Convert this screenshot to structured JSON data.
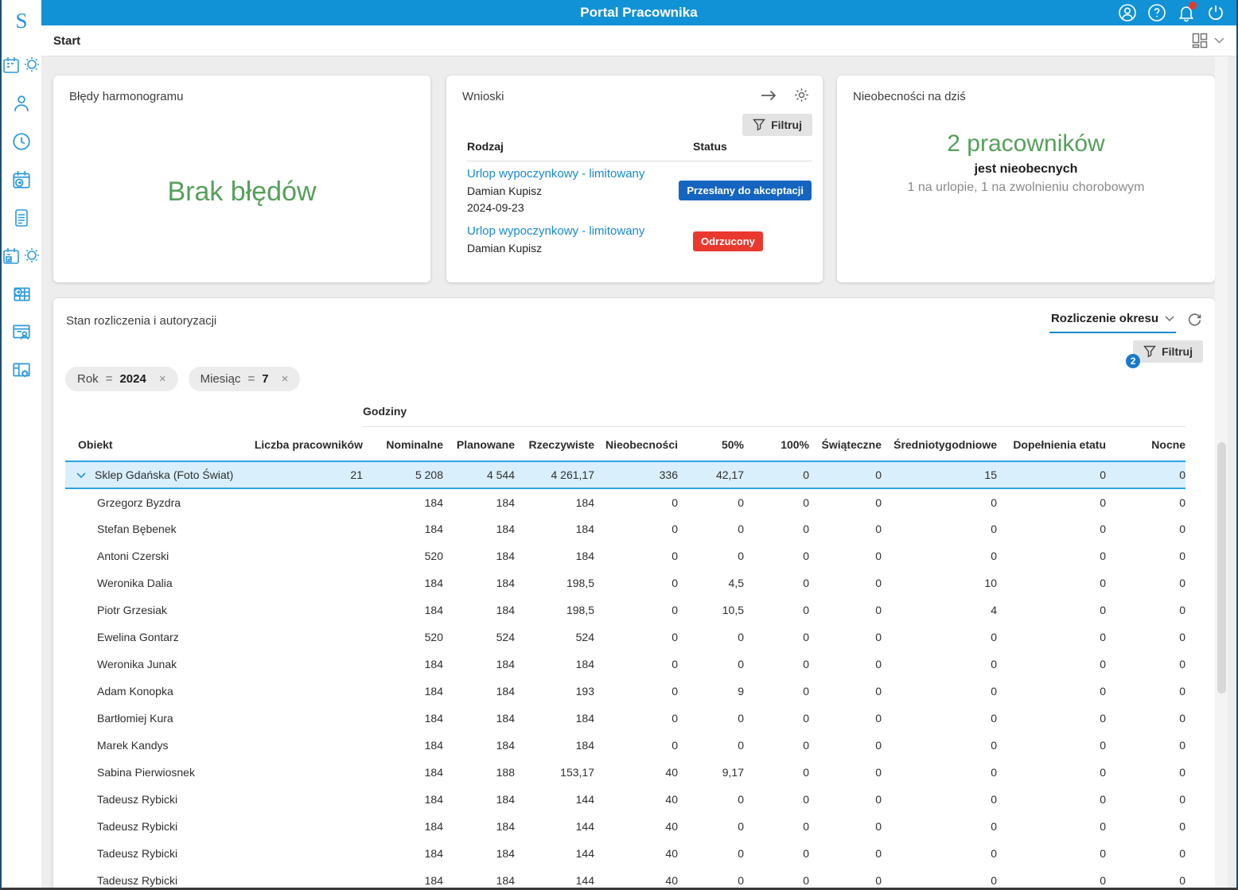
{
  "app": {
    "title": "Portal Pracownika"
  },
  "topbar": {
    "icons": [
      "user-circle-icon",
      "help-icon",
      "bell-icon",
      "power-icon"
    ],
    "bell_has_notification": true
  },
  "breadcrumb": {
    "label": "Start",
    "icons": [
      "dashboard-layout-icon",
      "chevron-down-icon"
    ]
  },
  "sidebar": {
    "logo": "S",
    "items": [
      "calendar-sun-icon",
      "person-icon",
      "clock-icon",
      "calendar-arrow-icon",
      "document-icon",
      "calendar-check-sun-icon",
      "table-arrow-icon",
      "window-person-icon",
      "window-gear-icon"
    ]
  },
  "cards": {
    "schedule_errors": {
      "title": "Błędy harmonogramu",
      "message": "Brak błędów"
    },
    "requests": {
      "title": "Wnioski",
      "toolbar_icons": [
        "arrow-right-icon",
        "gear-icon"
      ],
      "filter_label": "Filtruj",
      "columns": {
        "type": "Rodzaj",
        "status": "Status"
      },
      "items": [
        {
          "type": "Urlop wypoczynkowy - limitowany",
          "person": "Damian Kupisz",
          "date": "2024-09-23",
          "status": "Przesłany do akceptacji",
          "status_color": "#1565c0"
        },
        {
          "type": "Urlop wypoczynkowy - limitowany",
          "person": "Damian Kupisz",
          "date": "",
          "status": "Odrzucony",
          "status_color": "#e9392f"
        }
      ]
    },
    "absences": {
      "title": "Nieobecności na dziś",
      "count": "2 pracowników",
      "subtitle": "jest nieobecnych",
      "details": "1 na urlopie, 1 na zwolnieniu chorobowym"
    }
  },
  "panel": {
    "title": "Stan rozliczenia i autoryzacji",
    "view_selector": "Rozliczenie okresu",
    "filter_label": "Filtruj",
    "filter_badge": "2",
    "chips": [
      {
        "label": "Rok",
        "operator": "=",
        "value": "2024",
        "close": "×"
      },
      {
        "label": "Miesiąc",
        "operator": "=",
        "value": "7",
        "close": "×"
      }
    ],
    "table": {
      "group_header": "Godziny",
      "columns": [
        "Obiekt",
        "Liczba pracowników",
        "Nominalne",
        "Planowane",
        "Rzeczywiste",
        "Nieobecności",
        "50%",
        "100%",
        "Świąteczne",
        "Średniotygodniowe",
        "Dopełnienia etatu",
        "Nocne"
      ],
      "group_row": {
        "name": "Sklep Gdańska (Foto Świat)",
        "values": [
          "21",
          "5 208",
          "4 544",
          "4 261,17",
          "336",
          "42,17",
          "0",
          "0",
          "15",
          "0",
          "0"
        ]
      },
      "rows": [
        {
          "name": "Grzegorz Byzdra",
          "values": [
            "",
            "184",
            "184",
            "184",
            "0",
            "0",
            "0",
            "0",
            "0",
            "0",
            "0"
          ]
        },
        {
          "name": "Stefan Bębenek",
          "values": [
            "",
            "184",
            "184",
            "184",
            "0",
            "0",
            "0",
            "0",
            "0",
            "0",
            "0"
          ]
        },
        {
          "name": "Antoni Czerski",
          "values": [
            "",
            "520",
            "184",
            "184",
            "0",
            "0",
            "0",
            "0",
            "0",
            "0",
            "0"
          ]
        },
        {
          "name": "Weronika Dalia",
          "values": [
            "",
            "184",
            "184",
            "198,5",
            "0",
            "4,5",
            "0",
            "0",
            "10",
            "0",
            "0"
          ]
        },
        {
          "name": "Piotr Grzesiak",
          "values": [
            "",
            "184",
            "184",
            "198,5",
            "0",
            "10,5",
            "0",
            "0",
            "4",
            "0",
            "0"
          ]
        },
        {
          "name": "Ewelina Gontarz",
          "values": [
            "",
            "520",
            "524",
            "524",
            "0",
            "0",
            "0",
            "0",
            "0",
            "0",
            "0"
          ]
        },
        {
          "name": "Weronika Junak",
          "values": [
            "",
            "184",
            "184",
            "184",
            "0",
            "0",
            "0",
            "0",
            "0",
            "0",
            "0"
          ]
        },
        {
          "name": "Adam Konopka",
          "values": [
            "",
            "184",
            "184",
            "193",
            "0",
            "9",
            "0",
            "0",
            "0",
            "0",
            "0"
          ]
        },
        {
          "name": "Bartłomiej Kura",
          "values": [
            "",
            "184",
            "184",
            "184",
            "0",
            "0",
            "0",
            "0",
            "0",
            "0",
            "0"
          ]
        },
        {
          "name": "Marek Kandys",
          "values": [
            "",
            "184",
            "184",
            "184",
            "0",
            "0",
            "0",
            "0",
            "0",
            "0",
            "0"
          ]
        },
        {
          "name": "Sabina Pierwiosnek",
          "values": [
            "",
            "184",
            "188",
            "153,17",
            "40",
            "9,17",
            "0",
            "0",
            "0",
            "0",
            "0"
          ]
        },
        {
          "name": "Tadeusz Rybicki",
          "values": [
            "",
            "184",
            "184",
            "144",
            "40",
            "0",
            "0",
            "0",
            "0",
            "0",
            "0"
          ]
        },
        {
          "name": "Tadeusz Rybicki",
          "values": [
            "",
            "184",
            "184",
            "144",
            "40",
            "0",
            "0",
            "0",
            "0",
            "0",
            "0"
          ]
        },
        {
          "name": "Tadeusz Rybicki",
          "values": [
            "",
            "184",
            "184",
            "144",
            "40",
            "0",
            "0",
            "0",
            "0",
            "0",
            "0"
          ]
        },
        {
          "name": "Tadeusz Rybicki",
          "values": [
            "",
            "184",
            "184",
            "144",
            "40",
            "0",
            "0",
            "0",
            "0",
            "0",
            "0"
          ]
        }
      ]
    }
  },
  "colors": {
    "topbar_blue": "#1292d6",
    "accent_blue": "#1789d3",
    "sidebar_icon_blue": "#2e9ade",
    "success_green": "#55a05a",
    "badge_blue": "#1565c0",
    "badge_red": "#e9392f",
    "row_highlight_bg": "#d9effc",
    "row_highlight_border": "#2aa3e2",
    "filter_badge_blue": "#1779d0",
    "notification_red": "#e33b30"
  }
}
